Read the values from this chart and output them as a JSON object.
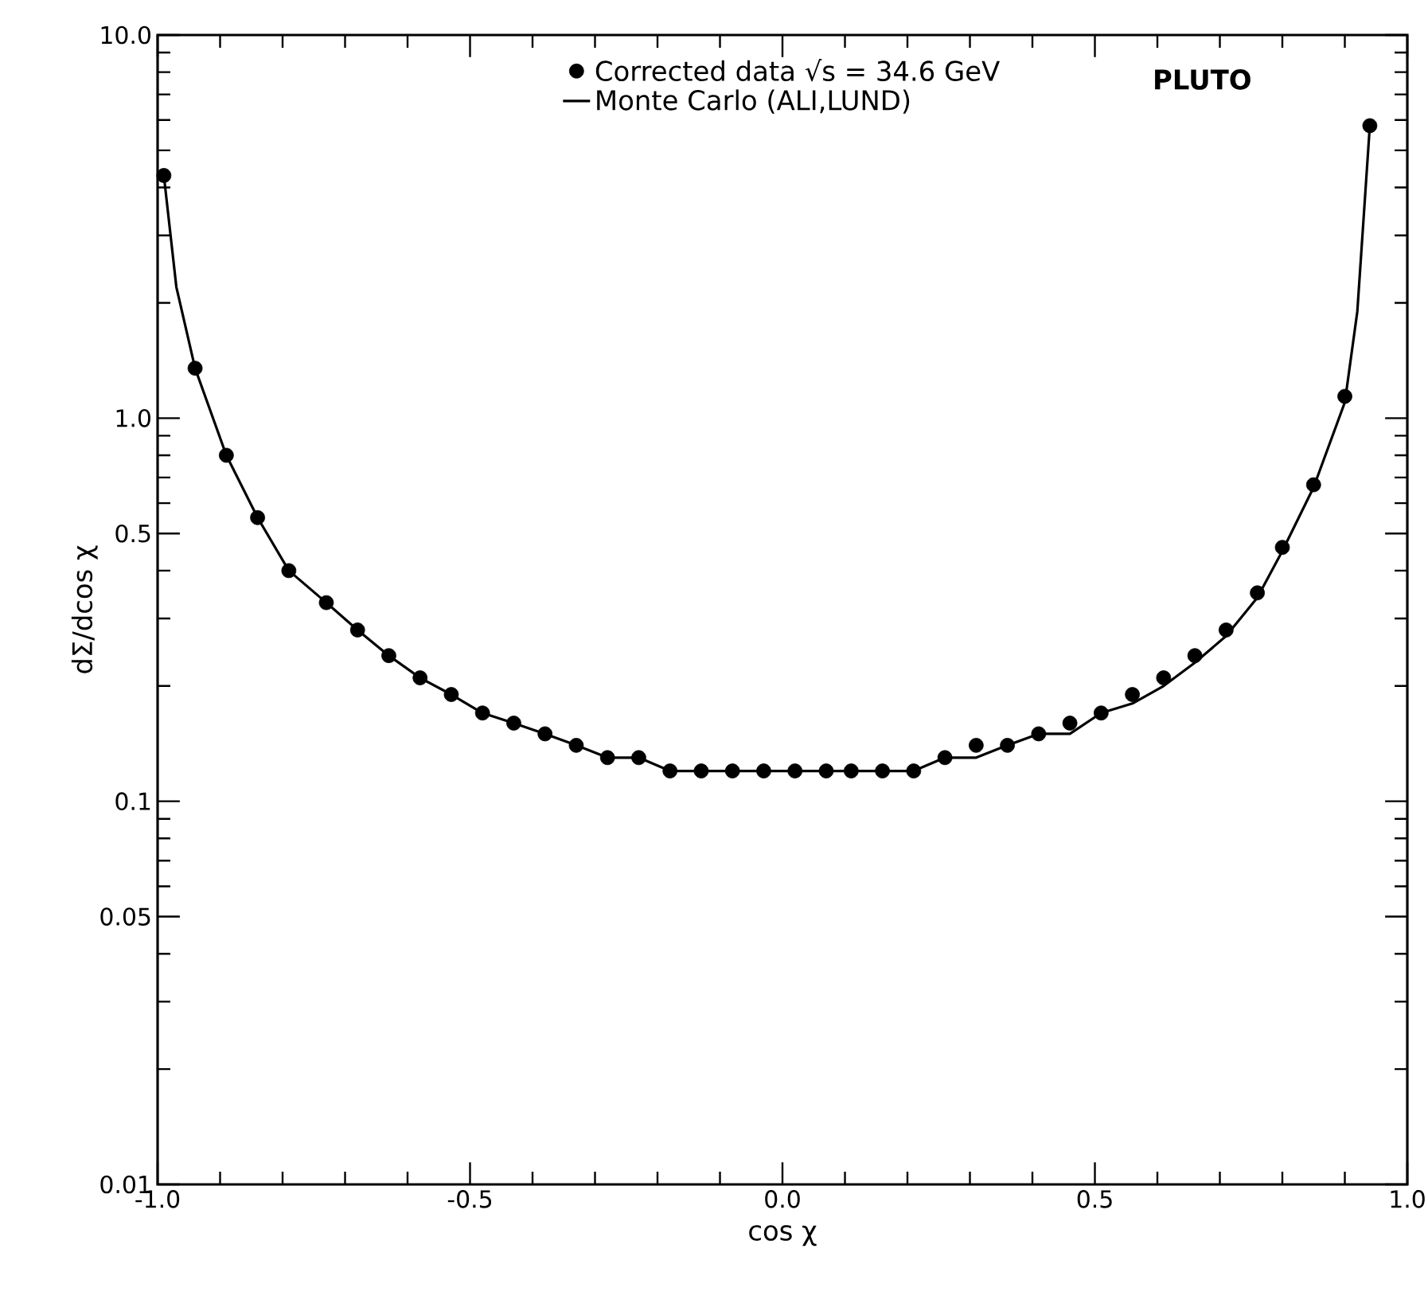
{
  "chart_data": {
    "type": "scatter",
    "xlabel": "cos χ",
    "ylabel": "dΣ/dcos χ",
    "log": "y",
    "legend": "top",
    "annotations": [
      "PLUTO"
    ],
    "xlim": [
      -1,
      1
    ],
    "ylim": [
      0.01,
      10
    ],
    "xticks": [
      {
        "value": -1,
        "label": "-1.0"
      },
      {
        "value": -0.9,
        "label": null
      },
      {
        "value": -0.8,
        "label": null
      },
      {
        "value": -0.7,
        "label": null
      },
      {
        "value": -0.6,
        "label": null
      },
      {
        "value": -0.5,
        "label": "-0.5"
      },
      {
        "value": -0.4,
        "label": null
      },
      {
        "value": -0.3,
        "label": null
      },
      {
        "value": -0.2,
        "label": null
      },
      {
        "value": -0.1,
        "label": null
      },
      {
        "value": 0,
        "label": "0.0"
      },
      {
        "value": 0.1,
        "label": null
      },
      {
        "value": 0.2,
        "label": null
      },
      {
        "value": 0.3,
        "label": null
      },
      {
        "value": 0.4,
        "label": null
      },
      {
        "value": 0.5,
        "label": "0.5"
      },
      {
        "value": 0.6,
        "label": null
      },
      {
        "value": 0.7,
        "label": null
      },
      {
        "value": 0.8,
        "label": null
      },
      {
        "value": 0.9,
        "label": null
      },
      {
        "value": 1,
        "label": "1.0"
      }
    ],
    "yticks": [
      0.01,
      {
        "value": 0.02,
        "label": null
      },
      {
        "value": 0.03,
        "label": null
      },
      {
        "value": 0.04,
        "label": null
      },
      0.05,
      {
        "value": 0.06,
        "label": null
      },
      {
        "value": 0.07,
        "label": null
      },
      {
        "value": 0.08,
        "label": null
      },
      {
        "value": 0.09,
        "label": null
      },
      0.1,
      {
        "value": 0.2,
        "label": null
      },
      {
        "value": 0.3,
        "label": null
      },
      {
        "value": 0.4,
        "label": null
      },
      0.5,
      {
        "value": 0.6,
        "label": null
      },
      {
        "value": 0.7,
        "label": null
      },
      {
        "value": 0.8,
        "label": null
      },
      {
        "value": 0.9,
        "label": null
      },
      {
        "value": 1,
        "label": "1.0"
      },
      {
        "value": 2,
        "label": null
      },
      {
        "value": 3,
        "label": null
      },
      {
        "value": 4,
        "label": null
      },
      {
        "value": 5,
        "label": null
      },
      {
        "value": 6,
        "label": null
      },
      {
        "value": 7,
        "label": null
      },
      {
        "value": 8,
        "label": null
      },
      {
        "value": 9,
        "label": null
      },
      {
        "value": 10,
        "label": "10.0"
      }
    ],
    "series": [
      {
        "name": "Corrected data √s = 34.6 GeV",
        "marker": "circle",
        "color": "#000000",
        "x": [
          -0.99,
          -0.94,
          -0.89,
          -0.84,
          -0.79,
          -0.73,
          -0.68,
          -0.63,
          -0.58,
          -0.53,
          -0.48,
          -0.43,
          -0.38,
          -0.33,
          -0.28,
          -0.23,
          -0.18,
          -0.13,
          -0.08,
          -0.03,
          0.02,
          0.07,
          0.11,
          0.16,
          0.21,
          0.26,
          0.31,
          0.36,
          0.41,
          0.46,
          0.51,
          0.56,
          0.61,
          0.66,
          0.71,
          0.76,
          0.8,
          0.85,
          0.9,
          0.94
        ],
        "values": [
          4.3,
          1.35,
          0.8,
          0.55,
          0.4,
          0.33,
          0.28,
          0.24,
          0.21,
          0.19,
          0.17,
          0.16,
          0.15,
          0.14,
          0.13,
          0.13,
          0.12,
          0.12,
          0.12,
          0.12,
          0.12,
          0.12,
          0.12,
          0.12,
          0.12,
          0.13,
          0.14,
          0.14,
          0.15,
          0.16,
          0.17,
          0.19,
          0.21,
          0.24,
          0.28,
          0.35,
          0.46,
          0.67,
          1.14,
          5.8
        ]
      },
      {
        "name": "Monte Carlo (ALI,LUND)",
        "type": "line",
        "marker": "none",
        "line_style": "solid",
        "color": "#000000",
        "x": [
          -0.99,
          -0.97,
          -0.94,
          -0.89,
          -0.84,
          -0.79,
          -0.73,
          -0.68,
          -0.63,
          -0.58,
          -0.53,
          -0.48,
          -0.43,
          -0.38,
          -0.33,
          -0.28,
          -0.23,
          -0.18,
          -0.13,
          -0.08,
          -0.03,
          0.02,
          0.07,
          0.11,
          0.16,
          0.21,
          0.26,
          0.31,
          0.36,
          0.41,
          0.46,
          0.51,
          0.56,
          0.61,
          0.66,
          0.71,
          0.76,
          0.8,
          0.85,
          0.9,
          0.92,
          0.94
        ],
        "values": [
          4.3,
          2.2,
          1.35,
          0.8,
          0.55,
          0.4,
          0.33,
          0.28,
          0.24,
          0.21,
          0.19,
          0.17,
          0.16,
          0.15,
          0.14,
          0.13,
          0.13,
          0.12,
          0.12,
          0.12,
          0.12,
          0.12,
          0.12,
          0.12,
          0.12,
          0.12,
          0.13,
          0.13,
          0.14,
          0.15,
          0.15,
          0.17,
          0.18,
          0.2,
          0.23,
          0.27,
          0.34,
          0.45,
          0.66,
          1.1,
          1.9,
          5.8
        ]
      }
    ]
  }
}
